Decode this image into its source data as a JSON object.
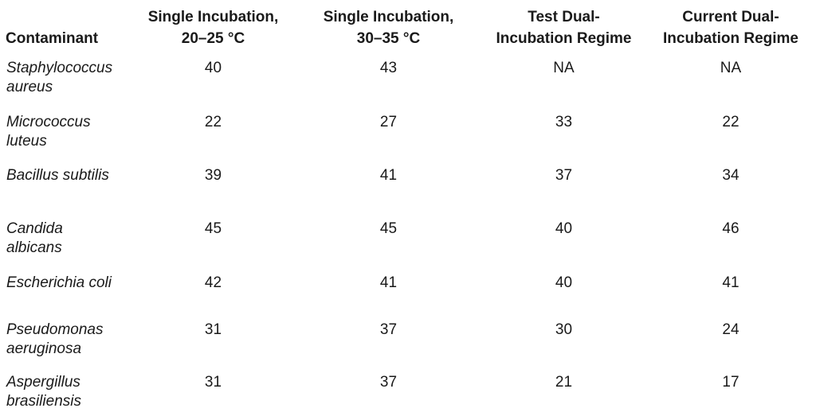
{
  "table": {
    "headers": [
      [
        "Contaminant"
      ],
      [
        "Single Incubation,",
        "20–25 °C"
      ],
      [
        "Single Incubation,",
        "30–35 °C"
      ],
      [
        "Test Dual-",
        "Incubation Regime"
      ],
      [
        "Current Dual-",
        "Incubation Regime"
      ]
    ],
    "rows": [
      [
        [
          "Staphylococcus",
          "aureus"
        ],
        40,
        43,
        "NA",
        "NA"
      ],
      [
        [
          "Micrococcus",
          "luteus"
        ],
        22,
        27,
        33,
        22
      ],
      [
        [
          "Bacillus subtilis"
        ],
        39,
        41,
        37,
        34
      ],
      [
        [
          "Candida",
          "albicans"
        ],
        45,
        45,
        40,
        46
      ],
      [
        [
          "Escherichia coli"
        ],
        42,
        41,
        40,
        41
      ],
      [
        [
          "Pseudomonas",
          "aeruginosa"
        ],
        31,
        37,
        30,
        24
      ],
      [
        [
          "Aspergillus",
          "brasiliensis"
        ],
        31,
        37,
        21,
        17
      ]
    ]
  }
}
